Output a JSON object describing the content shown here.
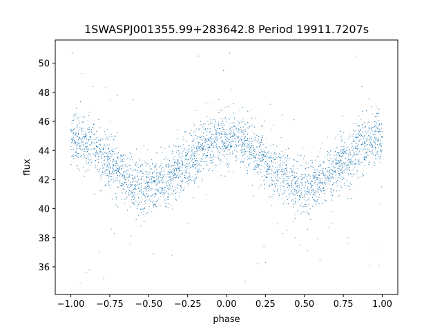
{
  "chart_data": {
    "type": "scatter",
    "title": "1SWASPJ001355.99+283642.8 Period 19911.7207s",
    "xlabel": "phase",
    "ylabel": "flux",
    "xlim": [
      -1.1,
      1.1
    ],
    "ylim": [
      34.1,
      51.6
    ],
    "xticks": [
      -1.0,
      -0.75,
      -0.5,
      -0.25,
      0.0,
      0.25,
      0.5,
      0.75,
      1.0
    ],
    "xtick_labels": [
      "−1.00",
      "−0.75",
      "−0.50",
      "−0.25",
      "0.00",
      "0.25",
      "0.50",
      "0.75",
      "1.00"
    ],
    "yticks": [
      36,
      38,
      40,
      42,
      44,
      46,
      48,
      50
    ],
    "ytick_labels": [
      "36",
      "38",
      "40",
      "42",
      "44",
      "46",
      "48",
      "50"
    ],
    "grid": false,
    "legend": "none",
    "point_color": "#1f77b4",
    "series": [
      {
        "x_range": [
          -1.0,
          1.0
        ],
        "n_points": 5000,
        "model": {
          "mean_flux": 43.2,
          "amplitude": 1.6,
          "period_in_phase": 1.0,
          "peak_phase": 0.0,
          "trough_phase": 0.5,
          "scatter_sd": 0.9
        },
        "outliers": [
          [
            -0.99,
            50.7
          ],
          [
            -0.93,
            49.3
          ],
          [
            -0.86,
            48.4
          ],
          [
            -0.78,
            48.3
          ],
          [
            -0.7,
            47.8
          ],
          [
            -0.6,
            47.5
          ],
          [
            -0.35,
            36.8
          ],
          [
            -0.47,
            36.9
          ],
          [
            -0.62,
            37.6
          ],
          [
            -0.72,
            38.3
          ],
          [
            -0.82,
            37.0
          ],
          [
            -0.88,
            35.8
          ],
          [
            -0.9,
            35.6
          ],
          [
            -0.94,
            34.9
          ],
          [
            -0.79,
            35.2
          ],
          [
            -0.74,
            38.6
          ],
          [
            -0.55,
            38.8
          ],
          [
            -0.25,
            39.0
          ],
          [
            -0.1,
            47.2
          ],
          [
            -0.05,
            47.5
          ],
          [
            0.03,
            48.2
          ],
          [
            0.02,
            50.7
          ],
          [
            0.12,
            35.0
          ],
          [
            0.2,
            36.2
          ],
          [
            0.24,
            37.4
          ],
          [
            0.36,
            38.3
          ],
          [
            0.44,
            38.0
          ],
          [
            0.47,
            37.5
          ],
          [
            0.52,
            37.1
          ],
          [
            0.6,
            36.5
          ],
          [
            0.68,
            39.0
          ],
          [
            0.78,
            38.0
          ],
          [
            0.83,
            50.5
          ],
          [
            0.87,
            48.4
          ],
          [
            0.92,
            36.1
          ],
          [
            0.96,
            37.3
          ],
          [
            0.98,
            36.1
          ],
          [
            0.99,
            40.3
          ],
          [
            0.25,
            36.3
          ],
          [
            -0.18,
            50.5
          ]
        ]
      }
    ]
  }
}
